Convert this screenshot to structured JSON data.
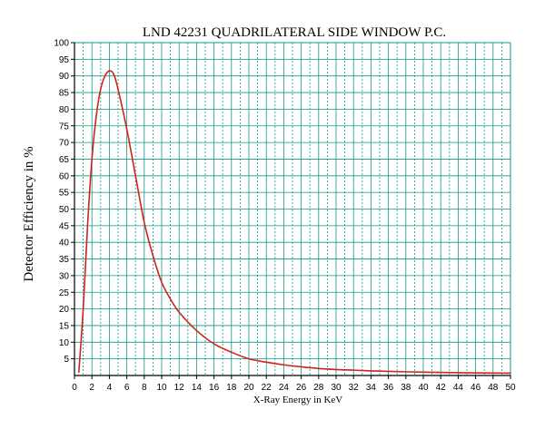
{
  "chart_data": {
    "type": "line",
    "title": "LND 42231 QUADRILATERAL SIDE WINDOW P.C.",
    "xlabel": "X-Ray Energy in KeV",
    "ylabel": "Detector Efficiency in %",
    "xlim": [
      0,
      50
    ],
    "ylim": [
      0,
      100
    ],
    "x_ticks": [
      0,
      2,
      4,
      6,
      8,
      10,
      12,
      14,
      16,
      18,
      20,
      22,
      24,
      26,
      28,
      30,
      32,
      34,
      36,
      38,
      40,
      42,
      44,
      46,
      48,
      50
    ],
    "y_ticks": [
      5,
      10,
      15,
      20,
      25,
      30,
      35,
      40,
      45,
      50,
      55,
      60,
      65,
      70,
      75,
      80,
      85,
      90,
      95,
      100
    ],
    "grid": true,
    "colors": {
      "line": "#d0231c",
      "grid": "#0e9a8a",
      "axis": "#000000"
    },
    "series": [
      {
        "x": [
          0.5,
          1.0,
          1.5,
          2.0,
          2.5,
          3.0,
          3.5,
          4.0,
          4.5,
          5.0,
          6.0,
          7.0,
          8.0,
          9.0,
          10.0,
          11.0,
          12.0,
          14.0,
          16.0,
          18.0,
          20.0,
          22.0,
          24.0,
          26.0,
          28.0,
          30.0,
          32.0,
          35.0,
          40.0,
          45.0,
          50.0
        ],
        "y": [
          1,
          20,
          45,
          65,
          78,
          86,
          90,
          91.5,
          90.5,
          86,
          74,
          60,
          46,
          36,
          28,
          23,
          19,
          13.5,
          9.5,
          7,
          5,
          4,
          3.2,
          2.6,
          2.1,
          1.8,
          1.6,
          1.3,
          1.0,
          0.8,
          0.7
        ]
      }
    ]
  }
}
